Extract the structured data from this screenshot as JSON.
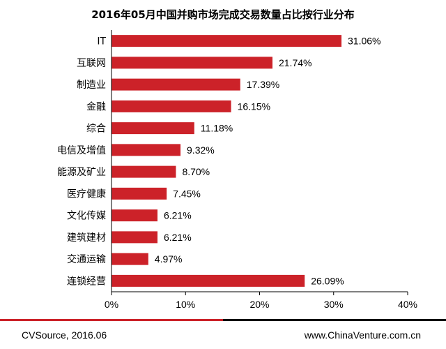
{
  "chart_data": {
    "type": "bar",
    "orientation": "horizontal",
    "title": "2016年05月中国并购市场完成交易数量占比按行业分布",
    "categories": [
      "IT",
      "互联网",
      "制造业",
      "金融",
      "综合",
      "电信及增值",
      "能源及矿业",
      "医疗健康",
      "文化传媒",
      "建筑建材",
      "交通运输",
      "连锁经营"
    ],
    "values": [
      31.06,
      21.74,
      17.39,
      16.15,
      11.18,
      9.32,
      8.7,
      7.45,
      6.21,
      6.21,
      4.97,
      26.09
    ],
    "value_labels": [
      "31.06%",
      "21.74%",
      "17.39%",
      "16.15%",
      "11.18%",
      "9.32%",
      "8.70%",
      "7.45%",
      "6.21%",
      "6.21%",
      "4.97%",
      "26.09%"
    ],
    "xlim": [
      0,
      40
    ],
    "xticks": [
      "0%",
      "10%",
      "20%",
      "30%",
      "40%"
    ],
    "xtick_values": [
      0,
      10,
      20,
      30,
      40
    ],
    "xlabel": "",
    "ylabel": "",
    "grid": false,
    "bar_color": "#CC2229"
  },
  "footer": {
    "source": "CVSource, 2016.06",
    "website": "www.ChinaVenture.com.cn",
    "line_colors": [
      "#CC2229",
      "#000000"
    ]
  }
}
